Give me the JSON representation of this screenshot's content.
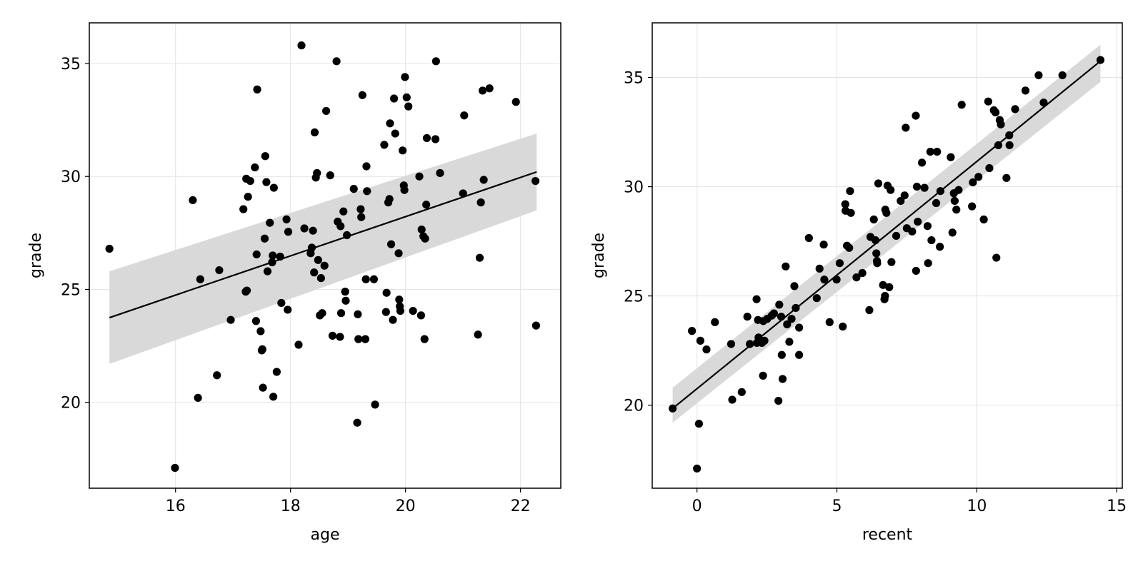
{
  "colors": {
    "background": "#ffffff",
    "points": "#000000",
    "fit_line": "#000000",
    "confidence_band": "#d9d9d9",
    "grid": "#e4e4e4",
    "frame": "#000000"
  },
  "chart_data": [
    {
      "type": "scatter",
      "title": "",
      "xlabel": "age",
      "ylabel": "grade",
      "xlim": [
        14.5,
        22.7
      ],
      "ylim": [
        16.2,
        36.8
      ],
      "xticks": [
        16,
        18,
        20,
        22
      ],
      "xtick_labels": [
        "16",
        "18",
        "20",
        "22"
      ],
      "yticks": [
        20,
        25,
        30,
        35
      ],
      "ytick_labels": [
        "20",
        "25",
        "30",
        "35"
      ],
      "grid": true,
      "fit": {
        "x": [
          14.85,
          22.28
        ],
        "y": [
          23.75,
          30.2
        ],
        "band_upper": [
          25.8,
          31.9
        ],
        "band_lower": [
          21.7,
          28.5
        ]
      },
      "points": [
        [
          14.85,
          26.8
        ],
        [
          15.99,
          17.1
        ],
        [
          16.3,
          28.95
        ],
        [
          16.39,
          20.2
        ],
        [
          16.43,
          25.45
        ],
        [
          16.72,
          21.2
        ],
        [
          16.76,
          25.85
        ],
        [
          16.96,
          23.65
        ],
        [
          17.18,
          28.55
        ],
        [
          17.22,
          24.9
        ],
        [
          17.23,
          29.9
        ],
        [
          17.24,
          24.95
        ],
        [
          17.26,
          29.1
        ],
        [
          17.3,
          29.8
        ],
        [
          17.38,
          30.4
        ],
        [
          17.4,
          23.6
        ],
        [
          17.41,
          26.55
        ],
        [
          17.42,
          33.85
        ],
        [
          17.48,
          23.15
        ],
        [
          17.5,
          22.3
        ],
        [
          17.51,
          22.35
        ],
        [
          17.52,
          20.65
        ],
        [
          17.55,
          27.25
        ],
        [
          17.56,
          30.9
        ],
        [
          17.58,
          29.75
        ],
        [
          17.6,
          25.8
        ],
        [
          17.64,
          27.95
        ],
        [
          17.68,
          26.2
        ],
        [
          17.69,
          26.5
        ],
        [
          17.7,
          20.25
        ],
        [
          17.71,
          29.5
        ],
        [
          17.76,
          21.35
        ],
        [
          17.82,
          26.45
        ],
        [
          17.84,
          24.4
        ],
        [
          17.93,
          28.1
        ],
        [
          17.95,
          24.1
        ],
        [
          17.96,
          27.55
        ],
        [
          18.14,
          22.55
        ],
        [
          18.19,
          35.8
        ],
        [
          18.24,
          27.7
        ],
        [
          18.35,
          26.6
        ],
        [
          18.37,
          26.85
        ],
        [
          18.39,
          27.6
        ],
        [
          18.41,
          25.75
        ],
        [
          18.42,
          31.95
        ],
        [
          18.44,
          29.95
        ],
        [
          18.46,
          30.15
        ],
        [
          18.48,
          26.3
        ],
        [
          18.51,
          23.85
        ],
        [
          18.53,
          25.5
        ],
        [
          18.55,
          23.95
        ],
        [
          18.59,
          26.05
        ],
        [
          18.62,
          32.9
        ],
        [
          18.69,
          30.05
        ],
        [
          18.73,
          22.95
        ],
        [
          18.8,
          35.1
        ],
        [
          18.82,
          28.0
        ],
        [
          18.86,
          22.9
        ],
        [
          18.87,
          27.8
        ],
        [
          18.88,
          23.95
        ],
        [
          18.92,
          28.45
        ],
        [
          18.95,
          24.9
        ],
        [
          18.96,
          24.5
        ],
        [
          18.98,
          27.4
        ],
        [
          19.1,
          29.45
        ],
        [
          19.16,
          19.1
        ],
        [
          19.17,
          23.9
        ],
        [
          19.18,
          22.8
        ],
        [
          19.22,
          28.55
        ],
        [
          19.23,
          28.2
        ],
        [
          19.25,
          33.6
        ],
        [
          19.3,
          22.8
        ],
        [
          19.31,
          25.45
        ],
        [
          19.32,
          30.45
        ],
        [
          19.33,
          29.35
        ],
        [
          19.45,
          25.45
        ],
        [
          19.47,
          19.9
        ],
        [
          19.63,
          31.4
        ],
        [
          19.66,
          24.0
        ],
        [
          19.67,
          24.85
        ],
        [
          19.7,
          28.85
        ],
        [
          19.72,
          29.0
        ],
        [
          19.73,
          32.35
        ],
        [
          19.75,
          27.0
        ],
        [
          19.78,
          23.65
        ],
        [
          19.8,
          33.45
        ],
        [
          19.82,
          31.9
        ],
        [
          19.88,
          26.6
        ],
        [
          19.89,
          24.55
        ],
        [
          19.9,
          24.25
        ],
        [
          19.91,
          24.05
        ],
        [
          19.95,
          31.15
        ],
        [
          19.97,
          29.6
        ],
        [
          19.98,
          29.4
        ],
        [
          19.99,
          34.4
        ],
        [
          20.02,
          33.5
        ],
        [
          20.05,
          33.1
        ],
        [
          20.13,
          24.05
        ],
        [
          20.24,
          30.0
        ],
        [
          20.27,
          23.85
        ],
        [
          20.28,
          27.65
        ],
        [
          20.31,
          27.35
        ],
        [
          20.33,
          22.8
        ],
        [
          20.34,
          27.25
        ],
        [
          20.36,
          28.75
        ],
        [
          20.37,
          31.7
        ],
        [
          20.52,
          31.65
        ],
        [
          20.53,
          35.1
        ],
        [
          20.6,
          30.15
        ],
        [
          21.0,
          29.25
        ],
        [
          21.02,
          32.7
        ],
        [
          21.26,
          23.0
        ],
        [
          21.29,
          26.4
        ],
        [
          21.31,
          28.85
        ],
        [
          21.34,
          33.8
        ],
        [
          21.36,
          29.85
        ],
        [
          21.46,
          33.9
        ],
        [
          21.92,
          33.3
        ],
        [
          22.27,
          23.4
        ],
        [
          22.26,
          29.8
        ]
      ]
    },
    {
      "type": "scatter",
      "title": "",
      "xlabel": "recent",
      "ylabel": "grade",
      "xlim": [
        -1.6,
        15.2
      ],
      "ylim": [
        16.2,
        37.5
      ],
      "xticks": [
        0,
        5,
        10,
        15
      ],
      "xtick_labels": [
        "0",
        "5",
        "10",
        "15"
      ],
      "yticks": [
        20,
        25,
        30,
        35
      ],
      "ytick_labels": [
        "20",
        "25",
        "30",
        "35"
      ],
      "grid": true,
      "fit": {
        "x": [
          -0.87,
          14.42
        ],
        "y": [
          19.85,
          35.75
        ],
        "band_upper": [
          20.8,
          36.5
        ],
        "band_lower": [
          19.2,
          34.8
        ]
      },
      "points": [
        [
          -0.87,
          19.85
        ],
        [
          -0.18,
          23.4
        ],
        [
          0.0,
          17.1
        ],
        [
          0.07,
          19.15
        ],
        [
          0.12,
          22.95
        ],
        [
          0.34,
          22.55
        ],
        [
          0.64,
          23.8
        ],
        [
          1.22,
          22.8
        ],
        [
          1.26,
          20.25
        ],
        [
          1.6,
          20.6
        ],
        [
          1.8,
          24.05
        ],
        [
          1.89,
          22.8
        ],
        [
          2.13,
          24.85
        ],
        [
          2.14,
          22.85
        ],
        [
          2.18,
          23.9
        ],
        [
          2.2,
          23.1
        ],
        [
          2.32,
          22.85
        ],
        [
          2.36,
          21.35
        ],
        [
          2.37,
          23.85
        ],
        [
          2.41,
          22.95
        ],
        [
          2.51,
          23.95
        ],
        [
          2.67,
          24.1
        ],
        [
          2.75,
          24.2
        ],
        [
          2.91,
          20.2
        ],
        [
          2.94,
          24.6
        ],
        [
          3.01,
          24.05
        ],
        [
          3.03,
          22.3
        ],
        [
          3.06,
          21.2
        ],
        [
          3.17,
          26.35
        ],
        [
          3.22,
          23.7
        ],
        [
          3.3,
          22.9
        ],
        [
          3.38,
          23.95
        ],
        [
          3.48,
          25.45
        ],
        [
          3.53,
          24.45
        ],
        [
          3.65,
          23.55
        ],
        [
          3.65,
          22.3
        ],
        [
          4.0,
          27.65
        ],
        [
          4.28,
          24.9
        ],
        [
          4.38,
          26.25
        ],
        [
          4.53,
          27.35
        ],
        [
          4.55,
          25.75
        ],
        [
          4.74,
          23.8
        ],
        [
          4.99,
          25.75
        ],
        [
          5.1,
          26.5
        ],
        [
          5.21,
          23.6
        ],
        [
          5.3,
          29.2
        ],
        [
          5.31,
          28.9
        ],
        [
          5.36,
          27.3
        ],
        [
          5.44,
          27.2
        ],
        [
          5.47,
          29.8
        ],
        [
          5.5,
          28.8
        ],
        [
          5.7,
          25.85
        ],
        [
          5.91,
          26.05
        ],
        [
          6.16,
          24.35
        ],
        [
          6.2,
          27.7
        ],
        [
          6.32,
          28.5
        ],
        [
          6.38,
          27.55
        ],
        [
          6.41,
          26.95
        ],
        [
          6.43,
          26.6
        ],
        [
          6.44,
          26.5
        ],
        [
          6.48,
          30.15
        ],
        [
          6.65,
          25.5
        ],
        [
          6.7,
          24.85
        ],
        [
          6.72,
          25.0
        ],
        [
          6.73,
          28.95
        ],
        [
          6.77,
          28.8
        ],
        [
          6.81,
          30.05
        ],
        [
          6.87,
          25.4
        ],
        [
          6.92,
          29.85
        ],
        [
          6.95,
          26.55
        ],
        [
          7.12,
          27.75
        ],
        [
          7.28,
          29.35
        ],
        [
          7.42,
          29.6
        ],
        [
          7.46,
          32.7
        ],
        [
          7.5,
          28.1
        ],
        [
          7.69,
          27.95
        ],
        [
          7.82,
          33.25
        ],
        [
          7.83,
          26.15
        ],
        [
          7.86,
          30.0
        ],
        [
          7.89,
          28.4
        ],
        [
          8.04,
          31.1
        ],
        [
          8.13,
          29.95
        ],
        [
          8.24,
          28.2
        ],
        [
          8.26,
          26.5
        ],
        [
          8.34,
          31.6
        ],
        [
          8.38,
          27.55
        ],
        [
          8.55,
          29.25
        ],
        [
          8.58,
          31.6
        ],
        [
          8.68,
          27.25
        ],
        [
          8.7,
          29.8
        ],
        [
          9.07,
          31.35
        ],
        [
          9.13,
          27.9
        ],
        [
          9.18,
          29.7
        ],
        [
          9.21,
          29.35
        ],
        [
          9.27,
          28.95
        ],
        [
          9.35,
          29.85
        ],
        [
          9.46,
          33.75
        ],
        [
          9.83,
          29.1
        ],
        [
          9.86,
          30.2
        ],
        [
          10.06,
          30.45
        ],
        [
          10.25,
          28.5
        ],
        [
          10.41,
          33.9
        ],
        [
          10.45,
          30.85
        ],
        [
          10.61,
          33.5
        ],
        [
          10.67,
          33.4
        ],
        [
          10.7,
          26.75
        ],
        [
          10.77,
          31.9
        ],
        [
          10.82,
          33.05
        ],
        [
          10.86,
          32.85
        ],
        [
          11.06,
          30.4
        ],
        [
          11.16,
          32.35
        ],
        [
          11.17,
          31.9
        ],
        [
          11.37,
          33.55
        ],
        [
          11.74,
          34.4
        ],
        [
          12.21,
          35.1
        ],
        [
          12.39,
          33.85
        ],
        [
          13.06,
          35.1
        ],
        [
          14.42,
          35.8
        ]
      ]
    }
  ]
}
